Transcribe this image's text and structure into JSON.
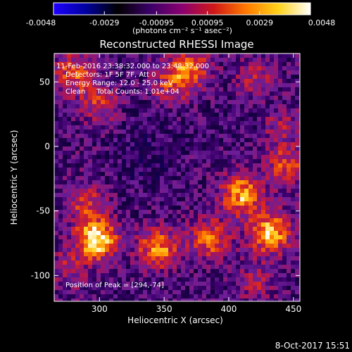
{
  "colorbar": {
    "tick_labels": [
      "-0.0048",
      "-0.0029",
      "-0.00095",
      "0.00095",
      "0.0029",
      "0.0048"
    ],
    "tick_values": [
      -0.0048,
      -0.0029,
      -0.00095,
      0.00095,
      0.0029,
      0.0048
    ],
    "range": [
      -0.0048,
      0.0048
    ],
    "units_label": "(photons cm⁻² s⁻¹ asec⁻²)",
    "color_stops": [
      "#1f00ff",
      "#0000a0",
      "#000000",
      "#3a0068",
      "#8a0070",
      "#d01818",
      "#ff7a00",
      "#ffd21a",
      "#ffffff"
    ]
  },
  "chart_data": {
    "type": "heatmap",
    "title": "Reconstructed RHESSI Image",
    "xlabel": "Heliocentric X (arcsec)",
    "ylabel": "Heliocentric Y (arcsec)",
    "xlim": [
      265,
      455
    ],
    "ylim": [
      -120,
      72
    ],
    "xticks": [
      300,
      350,
      400,
      450
    ],
    "yticks": [
      50,
      0,
      -50,
      -100
    ],
    "sources": [
      {
        "x": 298,
        "y": -72,
        "intensity": 1.0
      },
      {
        "x": 345,
        "y": -80,
        "intensity": 0.75
      },
      {
        "x": 385,
        "y": -72,
        "intensity": 0.6
      },
      {
        "x": 410,
        "y": -37,
        "intensity": 0.8
      },
      {
        "x": 432,
        "y": -67,
        "intensity": 0.85
      },
      {
        "x": 290,
        "y": -43,
        "intensity": 0.45
      },
      {
        "x": 280,
        "y": 57,
        "intensity": 0.55
      },
      {
        "x": 300,
        "y": 33,
        "intensity": 0.45
      },
      {
        "x": 370,
        "y": 60,
        "intensity": 0.6
      },
      {
        "x": 355,
        "y": 48,
        "intensity": 0.4
      },
      {
        "x": 420,
        "y": 52,
        "intensity": 0.35
      },
      {
        "x": 440,
        "y": 15,
        "intensity": 0.3
      },
      {
        "x": 445,
        "y": -15,
        "intensity": 0.5
      },
      {
        "x": 275,
        "y": -95,
        "intensity": 0.3
      },
      {
        "x": 420,
        "y": -105,
        "intensity": 0.3
      }
    ],
    "negative_regions": [
      {
        "x": 340,
        "y": -15,
        "depth": 0.6
      },
      {
        "x": 330,
        "y": 15,
        "depth": 0.35
      },
      {
        "x": 345,
        "y": -105,
        "depth": 0.3
      },
      {
        "x": 410,
        "y": 25,
        "depth": 0.3
      }
    ],
    "annotations": {
      "time": "11-Feb-2016 23:38:32.000 to 23:48:32.000",
      "detectors": "Detectors: 1F 5F 7F, Att 0",
      "energy": "Energy Range: 12.0 - 25.0 keV",
      "clean": "Clean     Total Counts: 1.01e+04",
      "peak": "Position of Peak = [294,-74]"
    }
  },
  "footer": {
    "date": "8-Oct-2017 15:51"
  }
}
